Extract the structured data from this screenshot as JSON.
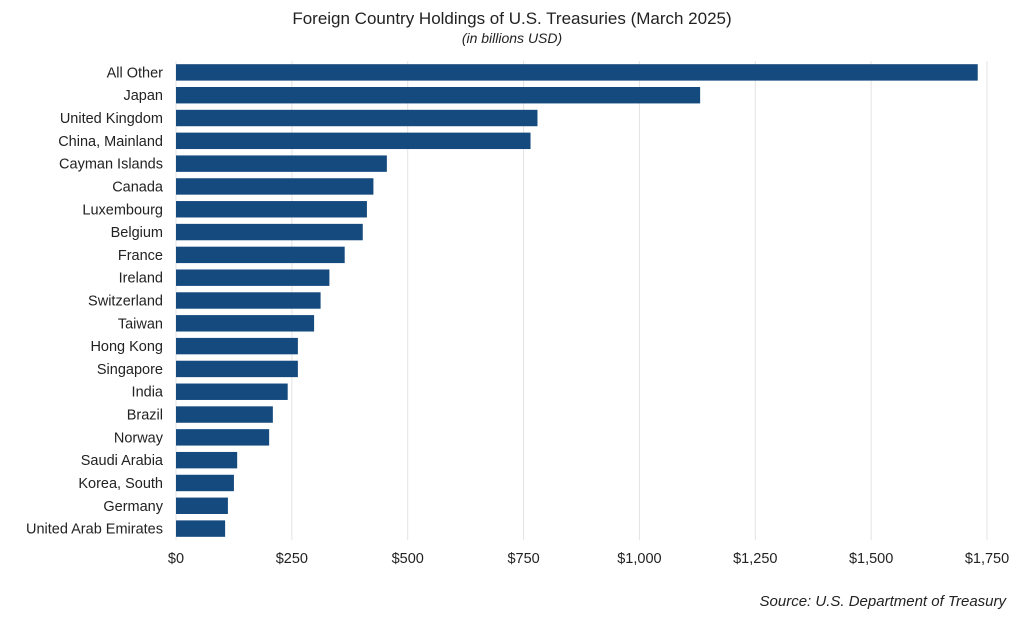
{
  "chart_data": {
    "type": "bar",
    "orientation": "horizontal",
    "title": "Foreign Country Holdings of U.S. Treasuries (March 2025)",
    "subtitle": "(in billions USD)",
    "source": "Source: U.S. Department of Treasury",
    "xlim": [
      0,
      1750
    ],
    "xticks": [
      0,
      250,
      500,
      750,
      1000,
      1250,
      1500,
      1750
    ],
    "xtick_labels": [
      "$0",
      "$250",
      "$500",
      "$750",
      "$1,000",
      "$1,250",
      "$1,500",
      "$1,750"
    ],
    "grid": true,
    "bar_color": "#154a7e",
    "categories": [
      "All Other",
      "Japan",
      "United Kingdom",
      "China, Mainland",
      "Cayman Islands",
      "Canada",
      "Luxembourg",
      "Belgium",
      "France",
      "Ireland",
      "Switzerland",
      "Taiwan",
      "Hong Kong",
      "Singapore",
      "India",
      "Brazil",
      "Norway",
      "Saudi Arabia",
      "Korea, South",
      "Germany",
      "United Arab Emirates"
    ],
    "values": [
      1730,
      1131,
      780,
      765,
      455,
      426,
      412,
      403,
      364,
      331,
      312,
      298,
      263,
      263,
      241,
      209,
      201,
      132,
      125,
      112,
      106
    ]
  }
}
